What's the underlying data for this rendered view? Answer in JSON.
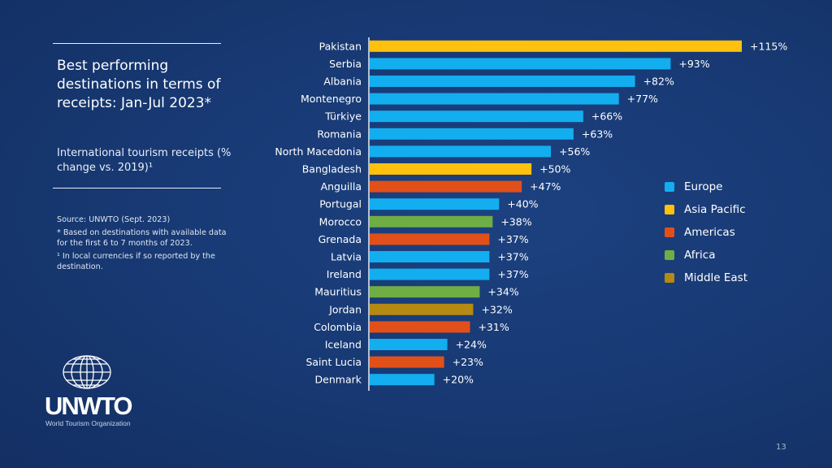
{
  "panel": {
    "title": "Best performing destinations in terms of receipts: Jan-Jul 2023*",
    "subtitle": "International tourism receipts (% change vs. 2019)¹",
    "source": "Source: UNWTO (Sept. 2023)",
    "note1": "*  Based on destinations with available data for the first 6 to 7 months of 2023.",
    "note2": "¹ In local currencies if so reported by the destination."
  },
  "logo": {
    "name": "UNWTO",
    "subtitle": "World Tourism Organization"
  },
  "page_number": "13",
  "chart_data": {
    "type": "bar",
    "orientation": "horizontal",
    "title": "",
    "xlabel": "",
    "ylabel": "",
    "xlim": [
      0,
      115
    ],
    "grid": false,
    "legend_placement": "right",
    "categories": [
      "Pakistan",
      "Serbia",
      "Albania",
      "Montenegro",
      "Türkiye",
      "Romania",
      "North Macedonia",
      "Bangladesh",
      "Anguilla",
      "Portugal",
      "Morocco",
      "Grenada",
      "Latvia",
      "Ireland",
      "Mauritius",
      "Jordan",
      "Colombia",
      "Iceland",
      "Saint Lucia",
      "Denmark"
    ],
    "values": [
      115,
      93,
      82,
      77,
      66,
      63,
      56,
      50,
      47,
      40,
      38,
      37,
      37,
      37,
      34,
      32,
      31,
      24,
      23,
      20
    ],
    "data_labels": [
      "+115%",
      "+93%",
      "+82%",
      "+77%",
      "+66%",
      "+63%",
      "+56%",
      "+50%",
      "+47%",
      "+40%",
      "+38%",
      "+37%",
      "+37%",
      "+37%",
      "+34%",
      "+32%",
      "+31%",
      "+24%",
      "+23%",
      "+20%"
    ],
    "regions": [
      "Asia Pacific",
      "Europe",
      "Europe",
      "Europe",
      "Europe",
      "Europe",
      "Europe",
      "Asia Pacific",
      "Americas",
      "Europe",
      "Africa",
      "Americas",
      "Europe",
      "Europe",
      "Africa",
      "Middle East",
      "Americas",
      "Europe",
      "Americas",
      "Europe"
    ],
    "legend": [
      {
        "name": "Europe",
        "color": "#12aef0"
      },
      {
        "name": "Asia Pacific",
        "color": "#ffc10e"
      },
      {
        "name": "Americas",
        "color": "#e2501a"
      },
      {
        "name": "Africa",
        "color": "#6fae45"
      },
      {
        "name": "Middle East",
        "color": "#b48a12"
      }
    ]
  }
}
